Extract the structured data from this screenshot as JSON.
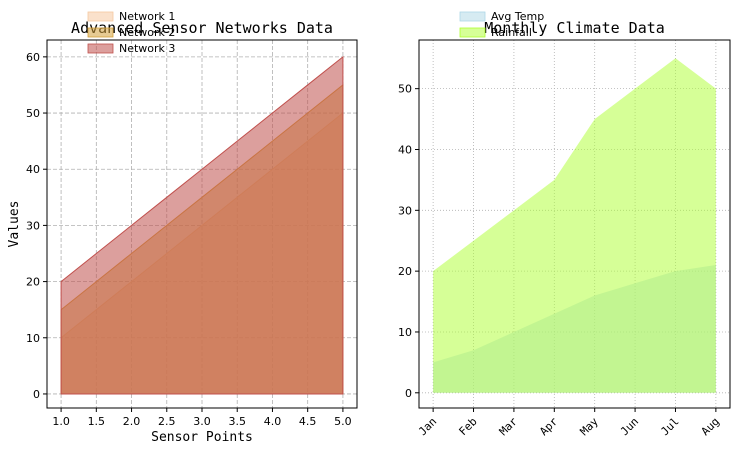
{
  "chart_data": [
    {
      "type": "area",
      "title": "Advanced Sensor Networks Data",
      "xlabel": "Sensor Points",
      "ylabel": "Values",
      "x": [
        1.0,
        1.5,
        2.0,
        2.5,
        3.0,
        3.5,
        4.0,
        4.5,
        5.0
      ],
      "x_tick_labels": [
        "1.0",
        "1.5",
        "2.0",
        "2.5",
        "3.0",
        "3.5",
        "4.0",
        "4.5",
        "5.0"
      ],
      "xlim": [
        0.8,
        5.2
      ],
      "ylim": [
        -2.5,
        63
      ],
      "y_ticks": [
        0,
        10,
        20,
        30,
        40,
        50,
        60
      ],
      "grid": "dashed",
      "legend_position": "top-left",
      "series": [
        {
          "name": "Network 1",
          "color": "#f5c9a0",
          "values": [
            10,
            15,
            20,
            25,
            30,
            35,
            40,
            45,
            50
          ]
        },
        {
          "name": "Network 2",
          "color": "#d4a03a",
          "values": [
            15,
            20,
            25,
            30,
            35,
            40,
            45,
            50,
            55
          ]
        },
        {
          "name": "Network 3",
          "color": "#c0504d",
          "values": [
            20,
            25,
            30,
            35,
            40,
            45,
            50,
            55,
            60
          ]
        }
      ]
    },
    {
      "type": "area",
      "title": "Monthly Climate Data",
      "categories": [
        "Jan",
        "Feb",
        "Mar",
        "Apr",
        "May",
        "Jun",
        "Jul",
        "Aug"
      ],
      "ylim": [
        -2.5,
        58
      ],
      "y_ticks": [
        0,
        10,
        20,
        30,
        40,
        50
      ],
      "grid": "dotted",
      "legend_position": "top-left",
      "series": [
        {
          "name": "Avg Temp",
          "color": "#add8e6",
          "values": [
            5,
            7,
            10,
            13,
            16,
            18,
            20,
            21
          ]
        },
        {
          "name": "Rainfall",
          "color": "#adff2f",
          "values": [
            20,
            25,
            30,
            35,
            45,
            50,
            55,
            50
          ]
        }
      ]
    }
  ]
}
